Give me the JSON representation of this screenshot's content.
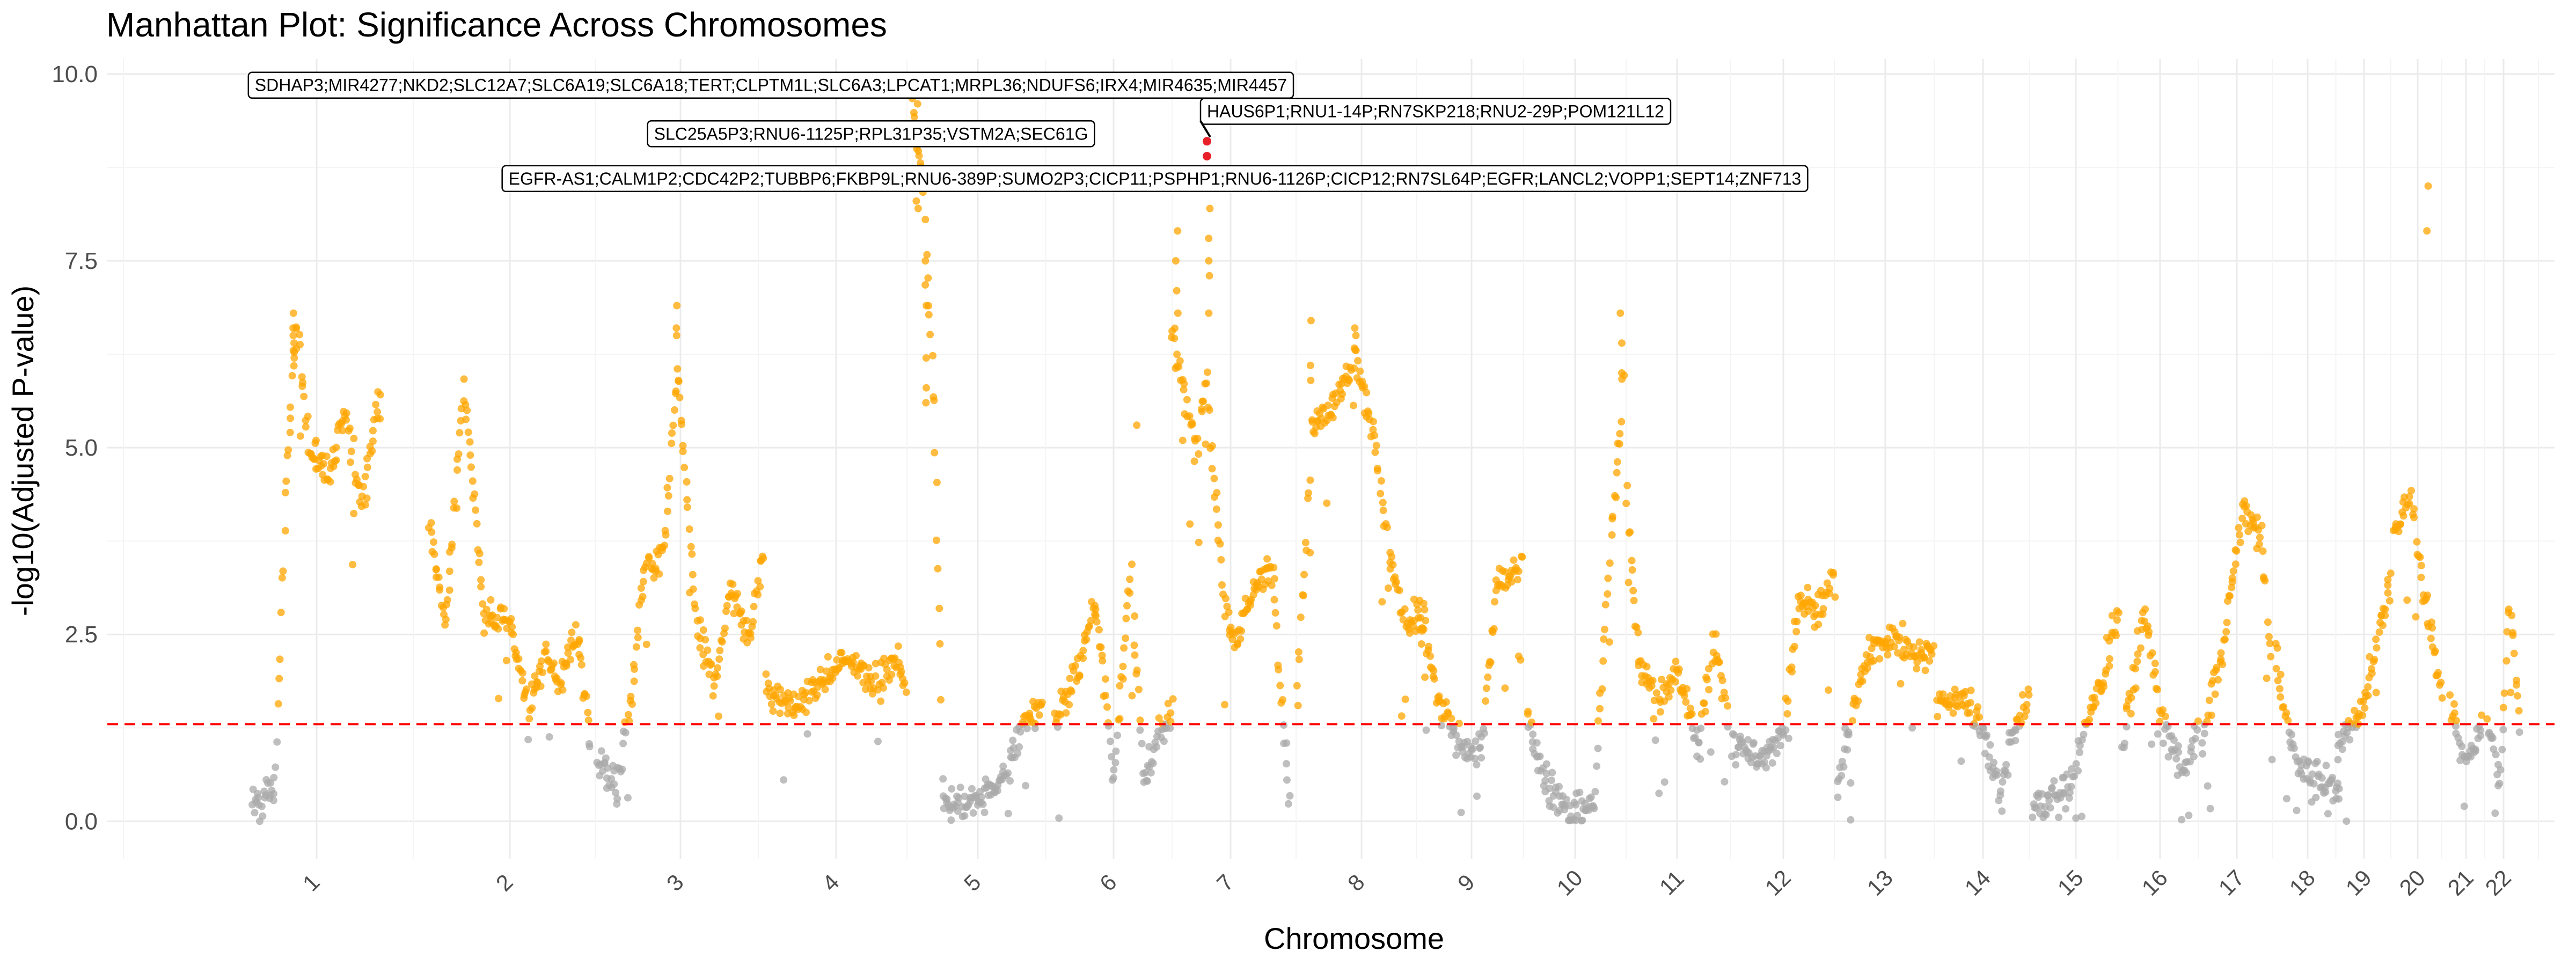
{
  "chart_data": {
    "type": "scatter",
    "title": "Manhattan Plot: Significance Across Chromosomes",
    "xlabel": "Chromosome",
    "ylabel": "-log10(Adjusted P-value)",
    "ylim": [
      -0.5,
      10.2
    ],
    "y_ticks": [
      0.0,
      2.5,
      5.0,
      7.5,
      10.0
    ],
    "y_tick_labels": [
      "0.0",
      "2.5",
      "5.0",
      "7.5",
      "10.0"
    ],
    "threshold": 1.3,
    "grid": true,
    "colors": {
      "significant": "#FFA500",
      "nonsignificant": "#A9A9A9",
      "threshold": "#FF0000",
      "highlight": "#E8202A",
      "grid": "#EBEBEB"
    },
    "chromosomes": [
      {
        "label": "1",
        "profile": [
          [
            0,
            0.2
          ],
          [
            0.18,
            0.5
          ],
          [
            0.26,
            4.5
          ],
          [
            0.34,
            6.6
          ],
          [
            0.45,
            5.0
          ],
          [
            0.6,
            4.6
          ],
          [
            0.72,
            5.4
          ],
          [
            0.85,
            4.3
          ],
          [
            1,
            5.7
          ]
        ]
      },
      {
        "label": "2",
        "profile": [
          [
            0,
            4.0
          ],
          [
            0.1,
            2.6
          ],
          [
            0.22,
            5.8
          ],
          [
            0.34,
            2.8
          ],
          [
            0.5,
            2.6
          ],
          [
            0.62,
            1.6
          ],
          [
            0.72,
            2.2
          ],
          [
            0.82,
            1.9
          ],
          [
            0.92,
            2.6
          ],
          [
            1,
            1.0
          ]
        ]
      },
      {
        "label": "3",
        "profile": [
          [
            0,
            0.9
          ],
          [
            0.12,
            0.4
          ],
          [
            0.2,
            1.6
          ],
          [
            0.28,
            3.3
          ],
          [
            0.4,
            3.5
          ],
          [
            0.48,
            6.0
          ],
          [
            0.6,
            2.6
          ],
          [
            0.7,
            1.8
          ],
          [
            0.8,
            3.2
          ],
          [
            0.9,
            2.4
          ],
          [
            1,
            3.5
          ]
        ]
      },
      {
        "label": "4",
        "profile": [
          [
            0,
            1.8
          ],
          [
            0.2,
            1.5
          ],
          [
            0.4,
            1.9
          ],
          [
            0.6,
            2.2
          ],
          [
            0.8,
            1.8
          ],
          [
            0.92,
            2.2
          ],
          [
            1,
            1.8
          ]
        ]
      },
      {
        "label": "5",
        "profile": [
          [
            0,
            9.6
          ],
          [
            0.08,
            8.4
          ],
          [
            0.16,
            5.6
          ],
          [
            0.24,
            0.2
          ],
          [
            0.5,
            0.3
          ],
          [
            0.7,
            0.6
          ],
          [
            0.85,
            1.3
          ],
          [
            1,
            1.6
          ]
        ]
      },
      {
        "label": "6",
        "profile": [
          [
            0,
            1.3
          ],
          [
            0.2,
            2.0
          ],
          [
            0.35,
            3.0
          ],
          [
            0.5,
            0.6
          ],
          [
            0.65,
            3.5
          ],
          [
            0.75,
            0.5
          ],
          [
            0.85,
            1.0
          ],
          [
            1,
            1.4
          ]
        ]
      },
      {
        "label": "7",
        "profile": [
          [
            0,
            6.5
          ],
          [
            0.1,
            5.8
          ],
          [
            0.2,
            5.0
          ],
          [
            0.3,
            6.0
          ],
          [
            0.42,
            3.2
          ],
          [
            0.52,
            2.4
          ],
          [
            0.62,
            2.8
          ],
          [
            0.75,
            3.2
          ],
          [
            0.86,
            3.4
          ],
          [
            1,
            0.2
          ]
        ]
      },
      {
        "label": "8",
        "profile": [
          [
            0,
            1.6
          ],
          [
            0.12,
            5.4
          ],
          [
            0.3,
            5.6
          ],
          [
            0.45,
            6.2
          ],
          [
            0.6,
            5.2
          ],
          [
            0.72,
            3.5
          ],
          [
            0.84,
            2.6
          ],
          [
            1,
            2.7
          ]
        ]
      },
      {
        "label": "9",
        "profile": [
          [
            0,
            2.6
          ],
          [
            0.2,
            1.5
          ],
          [
            0.4,
            1.0
          ],
          [
            0.6,
            1.0
          ],
          [
            0.75,
            3.2
          ],
          [
            1,
            3.4
          ]
        ]
      },
      {
        "label": "10",
        "profile": [
          [
            0,
            1.4
          ],
          [
            0.2,
            0.5
          ],
          [
            0.45,
            0.1
          ],
          [
            0.7,
            0.2
          ],
          [
            0.85,
            3.5
          ],
          [
            1,
            5.8
          ]
        ]
      },
      {
        "label": "11",
        "profile": [
          [
            0,
            4.5
          ],
          [
            0.12,
            2.2
          ],
          [
            0.3,
            1.6
          ],
          [
            0.5,
            2.0
          ],
          [
            0.7,
            1.0
          ],
          [
            0.85,
            2.4
          ],
          [
            1,
            1.5
          ]
        ]
      },
      {
        "label": "12",
        "profile": [
          [
            0,
            1.0
          ],
          [
            0.3,
            0.8
          ],
          [
            0.5,
            1.2
          ],
          [
            0.65,
            3.0
          ],
          [
            0.8,
            2.8
          ],
          [
            1,
            3.2
          ]
        ]
      },
      {
        "label": "13",
        "profile": [
          [
            0,
            0.5
          ],
          [
            0.3,
            2.2
          ],
          [
            0.55,
            2.5
          ],
          [
            0.75,
            2.3
          ],
          [
            1,
            2.2
          ]
        ]
      },
      {
        "label": "14",
        "profile": [
          [
            0,
            1.5
          ],
          [
            0.25,
            1.7
          ],
          [
            0.45,
            1.4
          ],
          [
            0.7,
            0.4
          ],
          [
            0.85,
            1.3
          ],
          [
            1,
            1.6
          ]
        ]
      },
      {
        "label": "15",
        "profile": [
          [
            0,
            0.2
          ],
          [
            0.4,
            0.4
          ],
          [
            0.6,
            1.2
          ],
          [
            0.8,
            1.9
          ],
          [
            1,
            2.8
          ]
        ]
      },
      {
        "label": "16",
        "profile": [
          [
            0,
            1.0
          ],
          [
            0.3,
            2.8
          ],
          [
            0.55,
            1.2
          ],
          [
            0.8,
            0.6
          ],
          [
            1,
            1.2
          ]
        ]
      },
      {
        "label": "17",
        "profile": [
          [
            0,
            1.0
          ],
          [
            0.3,
            2.3
          ],
          [
            0.6,
            4.2
          ],
          [
            0.85,
            3.8
          ],
          [
            1,
            2.0
          ]
        ]
      },
      {
        "label": "18",
        "profile": [
          [
            0,
            2.2
          ],
          [
            0.3,
            0.8
          ],
          [
            0.6,
            0.6
          ],
          [
            1,
            0.4
          ]
        ]
      },
      {
        "label": "19",
        "profile": [
          [
            0,
            1.0
          ],
          [
            0.5,
            1.6
          ],
          [
            1,
            3.2
          ]
        ]
      },
      {
        "label": "20",
        "profile": [
          [
            0,
            3.8
          ],
          [
            0.35,
            4.4
          ],
          [
            0.6,
            3.2
          ],
          [
            1,
            1.8
          ]
        ]
      },
      {
        "label": "21",
        "profile": [
          [
            0,
            1.5
          ],
          [
            0.5,
            0.8
          ],
          [
            1,
            1.3
          ]
        ]
      },
      {
        "label": "22",
        "profile": [
          [
            0,
            1.3
          ],
          [
            0.4,
            0.6
          ],
          [
            0.7,
            3.1
          ],
          [
            1,
            1.2
          ]
        ]
      }
    ],
    "peaks": [
      {
        "chrom": "1",
        "x": 0.32,
        "ys": [
          6.2,
          6.4,
          6.6,
          6.8,
          6.5,
          6.3
        ]
      },
      {
        "chrom": "3",
        "x": 0.48,
        "ys": [
          6.9,
          6.5,
          6.6,
          5.9
        ]
      },
      {
        "chrom": "5",
        "x": 0.03,
        "ys": [
          9.9,
          9.6,
          9.3,
          9.0,
          8.6,
          8.3,
          8.2
        ]
      },
      {
        "chrom": "5",
        "x": 0.1,
        "ys": [
          7.5,
          6.9,
          6.2,
          5.8,
          5.6
        ]
      },
      {
        "chrom": "6",
        "x": 0.7,
        "ys": [
          5.3
        ]
      },
      {
        "chrom": "7",
        "x": 0.05,
        "ys": [
          7.9,
          7.5,
          7.1,
          6.8
        ]
      },
      {
        "chrom": "7",
        "x": 0.32,
        "ys": [
          8.2,
          7.8,
          7.5,
          7.3,
          6.8
        ]
      },
      {
        "chrom": "8",
        "x": 0.1,
        "ys": [
          6.7,
          6.1,
          5.9
        ]
      },
      {
        "chrom": "8",
        "x": 0.45,
        "ys": [
          6.6,
          6.5,
          6.3
        ]
      },
      {
        "chrom": "10",
        "x": 0.98,
        "ys": [
          6.8,
          6.4,
          6.0
        ]
      },
      {
        "chrom": "20",
        "x": 0.7,
        "ys": [
          8.5,
          7.9
        ]
      }
    ],
    "annotations": [
      {
        "text": "SDHAP3;MIR4277;NKD2;SLC12A7;SLC6A19;SLC6A18;TERT;CLPTM1L;SLC6A3;LPCAT1;MRPL36;NDUFS6;IRX4;MIR4635;MIR4457",
        "chrom": "1",
        "x": 0.02,
        "y": 9.85,
        "anchor": "left"
      },
      {
        "text": "SLC25A5P3;RNU6-1125P;RPL31P35;VSTM2A;SEC61G",
        "chrom": "4",
        "x": 0.75,
        "y": 9.2,
        "anchor": "middle"
      },
      {
        "text": "HAUS6P1;RNU1-14P;RN7SKP218;RNU2-29P;POM121L12",
        "chrom": "7",
        "x": 0.3,
        "y": 9.5,
        "anchor": "left",
        "point_y": 9.1
      },
      {
        "text": "EGFR-AS1;CALM1P2;CDC42P2;TUBBP6;FKBP9L;RNU6-389P;SUMO2P3;CICP11;PSPHP1;RNU6-1126P;CICP12;RN7SL64P;EGFR;LANCL2;VOPP1;SEPT14;ZNF713",
        "chrom": "6",
        "x": 0.85,
        "y": 8.6,
        "anchor": "middle"
      }
    ],
    "highlights": [
      {
        "chrom": "7",
        "x": 0.3,
        "y": 9.1
      },
      {
        "chrom": "7",
        "x": 0.3,
        "y": 8.9
      }
    ]
  }
}
